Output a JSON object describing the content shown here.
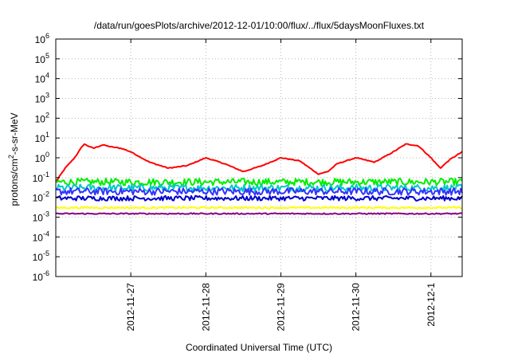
{
  "chart_data": {
    "type": "line",
    "title": "/data/run/goesPlots/archive/2012-12-01/10:00/flux/../flux/5daysMoonFluxes.txt",
    "xlabel": "Coordinated Universal Time (UTC)",
    "ylabel_parts": {
      "base": "protons/cm",
      "exp": "2",
      "rest": "-s-sr-MeV"
    },
    "y_scale": "log",
    "ylim": [
      1e-06,
      1000000.0
    ],
    "y_ticks": [
      {
        "value": 1e-06,
        "base": "10",
        "exp": "-6"
      },
      {
        "value": 1e-05,
        "base": "10",
        "exp": "-5"
      },
      {
        "value": 0.0001,
        "base": "10",
        "exp": "-4"
      },
      {
        "value": 0.001,
        "base": "10",
        "exp": "-3"
      },
      {
        "value": 0.01,
        "base": "10",
        "exp": "-2"
      },
      {
        "value": 0.1,
        "base": "10",
        "exp": "-1"
      },
      {
        "value": 1.0,
        "base": "10",
        "exp": "0"
      },
      {
        "value": 10.0,
        "base": "10",
        "exp": "1"
      },
      {
        "value": 100.0,
        "base": "10",
        "exp": "2"
      },
      {
        "value": 1000.0,
        "base": "10",
        "exp": "3"
      },
      {
        "value": 10000.0,
        "base": "10",
        "exp": "4"
      },
      {
        "value": 100000.0,
        "base": "10",
        "exp": "5"
      },
      {
        "value": 1000000.0,
        "base": "10",
        "exp": "6"
      }
    ],
    "xlim": [
      "2012-11-26T00:00",
      "2012-12-01T10:00"
    ],
    "x_ticks": [
      {
        "value": "2012-11-27T00:00",
        "label": "2012-11-27"
      },
      {
        "value": "2012-11-28T00:00",
        "label": "2012-11-28"
      },
      {
        "value": "2012-11-29T00:00",
        "label": "2012-11-29"
      },
      {
        "value": "2012-11-30T00:00",
        "label": "2012-11-30"
      },
      {
        "value": "2012-12-01T00:00",
        "label": "2012-12-1"
      }
    ],
    "grid": true,
    "legend": "none",
    "series": [
      {
        "color": "#ff0000",
        "noise": 0.02,
        "points": [
          [
            "2012-11-26T00:00",
            0.06
          ],
          [
            "2012-11-26T03:00",
            0.3
          ],
          [
            "2012-11-26T06:00",
            1.0
          ],
          [
            "2012-11-26T09:00",
            5.0
          ],
          [
            "2012-11-26T12:00",
            3.0
          ],
          [
            "2012-11-26T15:00",
            4.5
          ],
          [
            "2012-11-26T18:00",
            3.5
          ],
          [
            "2012-11-26T21:00",
            3.0
          ],
          [
            "2012-11-27T00:00",
            2.0
          ],
          [
            "2012-11-27T06:00",
            0.6
          ],
          [
            "2012-11-27T12:00",
            0.3
          ],
          [
            "2012-11-27T18:00",
            0.4
          ],
          [
            "2012-11-28T00:00",
            1.0
          ],
          [
            "2012-11-28T06:00",
            0.5
          ],
          [
            "2012-11-28T12:00",
            0.2
          ],
          [
            "2012-11-28T18:00",
            0.4
          ],
          [
            "2012-11-29T00:00",
            1.0
          ],
          [
            "2012-11-29T06:00",
            0.7
          ],
          [
            "2012-11-29T12:00",
            0.15
          ],
          [
            "2012-11-29T15:00",
            0.2
          ],
          [
            "2012-11-29T18:00",
            0.5
          ],
          [
            "2012-11-30T00:00",
            1.0
          ],
          [
            "2012-11-30T06:00",
            0.6
          ],
          [
            "2012-11-30T12:00",
            2.0
          ],
          [
            "2012-11-30T16:00",
            5.0
          ],
          [
            "2012-11-30T20:00",
            4.0
          ],
          [
            "2012-12-01T00:00",
            1.0
          ],
          [
            "2012-12-01T03:00",
            0.3
          ],
          [
            "2012-12-01T06:00",
            0.8
          ],
          [
            "2012-12-01T10:00",
            2.0
          ]
        ]
      },
      {
        "color": "#00ee00",
        "noise": 0.18,
        "points": [
          [
            "2012-11-26T00:00",
            0.06
          ],
          [
            "2012-12-01T10:00",
            0.06
          ]
        ]
      },
      {
        "color": "#00c8c8",
        "noise": 0.18,
        "points": [
          [
            "2012-11-26T00:00",
            0.03
          ],
          [
            "2012-12-01T10:00",
            0.03
          ]
        ]
      },
      {
        "color": "#3333ff",
        "noise": 0.18,
        "points": [
          [
            "2012-11-26T00:00",
            0.02
          ],
          [
            "2012-12-01T10:00",
            0.02
          ]
        ]
      },
      {
        "color": "#0000cc",
        "noise": 0.12,
        "points": [
          [
            "2012-11-26T00:00",
            0.009
          ],
          [
            "2012-12-01T10:00",
            0.009
          ]
        ]
      },
      {
        "color": "#ffff00",
        "noise": 0.04,
        "points": [
          [
            "2012-11-26T00:00",
            0.003
          ],
          [
            "2012-12-01T10:00",
            0.003
          ]
        ]
      },
      {
        "color": "#880088",
        "noise": 0.03,
        "points": [
          [
            "2012-11-26T00:00",
            0.0015
          ],
          [
            "2012-12-01T10:00",
            0.0015
          ]
        ]
      }
    ]
  }
}
